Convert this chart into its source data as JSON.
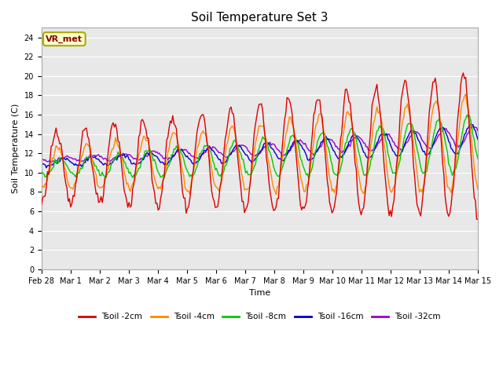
{
  "title": "Soil Temperature Set 3",
  "xlabel": "Time",
  "ylabel": "Soil Temperature (C)",
  "annotation": "VR_met",
  "fig_bg": "#ffffff",
  "plot_bg": "#e8e8e8",
  "ylim": [
    0,
    25
  ],
  "yticks": [
    0,
    2,
    4,
    6,
    8,
    10,
    12,
    14,
    16,
    18,
    20,
    22,
    24
  ],
  "colors": {
    "Tsoil -2cm": "#dd0000",
    "Tsoil -4cm": "#ff8800",
    "Tsoil -8cm": "#00cc00",
    "Tsoil -16cm": "#0000cc",
    "Tsoil -32cm": "#9900cc"
  },
  "line_width": 1.0,
  "grid_color": "#ffffff",
  "tick_label_size": 7,
  "title_fontsize": 11,
  "xlabel_fontsize": 8,
  "ylabel_fontsize": 8,
  "xtick_labels": [
    "Feb 28",
    "Mar 1",
    "Mar 2",
    "Mar 3",
    "Mar 4",
    "Mar 5",
    "Mar 6",
    "Mar 7",
    "Mar 8",
    "Mar 9",
    "Mar 10",
    "Mar 11",
    "Mar 12",
    "Mar 13",
    "Mar 14",
    "Mar 15"
  ],
  "legend_labels": [
    "Tsoil -2cm",
    "Tsoil -4cm",
    "Tsoil -8cm",
    "Tsoil -16cm",
    "Tsoil -32cm"
  ]
}
